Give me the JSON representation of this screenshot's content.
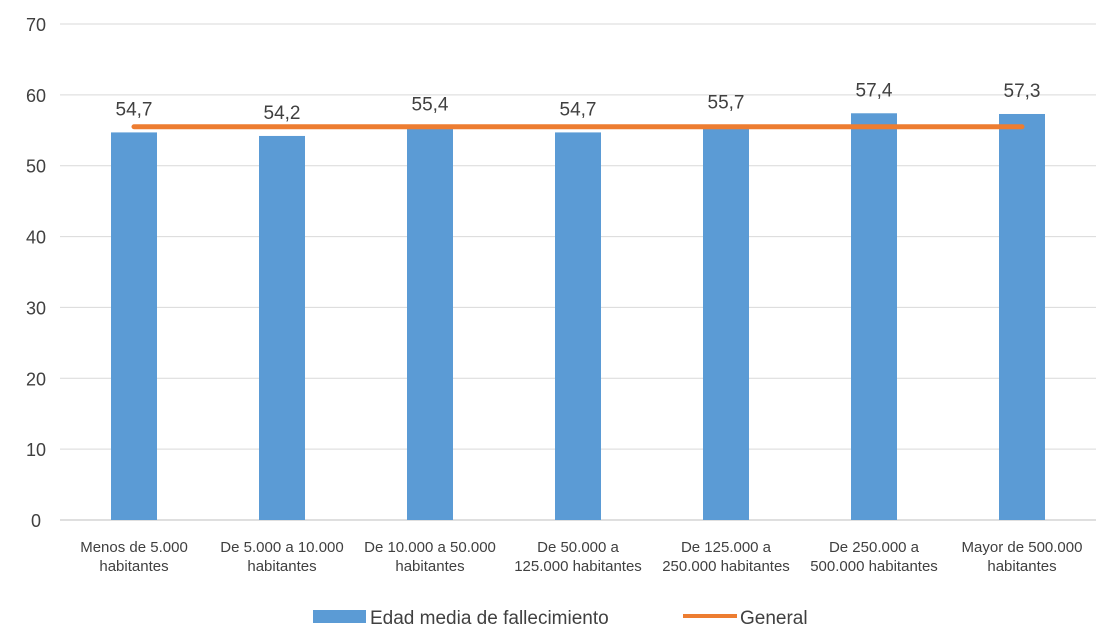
{
  "chart_data": {
    "type": "bar",
    "categories": [
      [
        "Menos de 5.000",
        "habitantes"
      ],
      [
        "De 5.000 a 10.000",
        "habitantes"
      ],
      [
        "De 10.000 a 50.000",
        "habitantes"
      ],
      [
        "De 50.000 a",
        "125.000 habitantes"
      ],
      [
        "De 125.000 a",
        "250.000 habitantes"
      ],
      [
        "De 250.000 a",
        "500.000 habitantes"
      ],
      [
        "Mayor de 500.000",
        "habitantes"
      ]
    ],
    "series": [
      {
        "name": "Edad media de fallecimiento",
        "type": "bar",
        "color": "#5B9BD5",
        "values": [
          54.7,
          54.2,
          55.4,
          54.7,
          55.7,
          57.4,
          57.3
        ],
        "labels": [
          "54,7",
          "54,2",
          "55,4",
          "54,7",
          "55,7",
          "57,4",
          "57,3"
        ]
      },
      {
        "name": "General",
        "type": "line",
        "color": "#ED7D31",
        "values": [
          55.5,
          55.5,
          55.5,
          55.5,
          55.5,
          55.5,
          55.5
        ]
      }
    ],
    "ylim": [
      0,
      70
    ],
    "yticks": [
      0,
      10,
      20,
      30,
      40,
      50,
      60,
      70
    ],
    "grid": true,
    "legend": "bottom",
    "title": "",
    "xlabel": "",
    "ylabel": ""
  }
}
